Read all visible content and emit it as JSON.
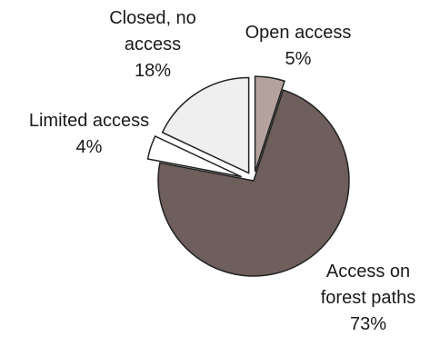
{
  "chart_data": {
    "type": "pie",
    "title": "",
    "exploded": true,
    "legend": "none",
    "slices": [
      {
        "label_lines": [
          "Open access"
        ],
        "pct_label": "5%",
        "value": 5,
        "color": "#b3a29e"
      },
      {
        "label_lines": [
          "Access on",
          "forest paths"
        ],
        "pct_label": "73%",
        "value": 73,
        "color": "#6e5e5c"
      },
      {
        "label_lines": [
          "Limited access"
        ],
        "pct_label": "4%",
        "value": 4,
        "color": "#ffffff"
      },
      {
        "label_lines": [
          "Closed, no",
          "access"
        ],
        "pct_label": "18%",
        "value": 18,
        "color": "#efefef"
      }
    ]
  }
}
